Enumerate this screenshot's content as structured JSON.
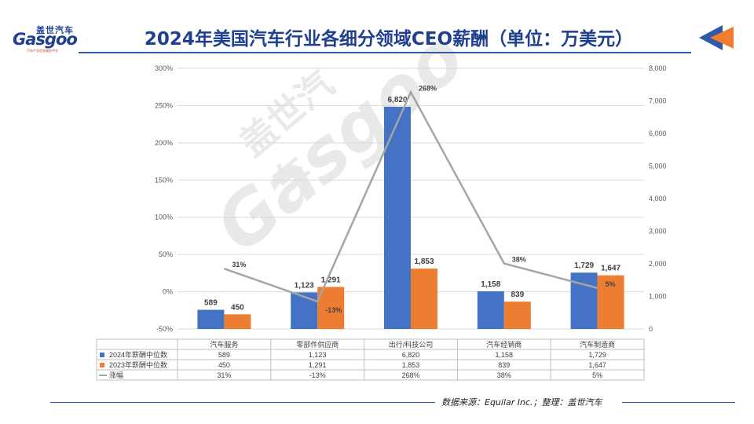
{
  "header": {
    "title": "2024年美国汽车行业各细分领域CEO薪酬（单位：万美元）",
    "logo_cn": "盖世汽车",
    "logo_en": "Gasgoo",
    "logo_sub": "汽车产业信息服务平台"
  },
  "watermark": {
    "cn": "盖世汽车",
    "en": "Gasgoo"
  },
  "footer": {
    "source": "数据来源：Equilar Inc.；整理：盖世汽车"
  },
  "colors": {
    "series_2024": "#4472c4",
    "series_2023": "#ed7d31",
    "growth": "#a5a5a5",
    "brand": "#1f3f8f",
    "accent_orange": "#ed7d31"
  },
  "chart_data": {
    "type": "bar",
    "title": "2024年美国汽车行业各细分领域CEO薪酬（单位：万美元）",
    "categories": [
      "汽车服务",
      "零部件供应商",
      "出行/科技公司",
      "汽车经销商",
      "汽车制造商"
    ],
    "series": [
      {
        "name": "2024年薪酬中位数",
        "type": "bar",
        "axis": "right",
        "values": [
          589,
          1123,
          6820,
          1158,
          1729
        ],
        "labels": [
          "589",
          "1,123",
          "6,820",
          "1,158",
          "1,729"
        ]
      },
      {
        "name": "2023年薪酬中位数",
        "type": "bar",
        "axis": "right",
        "values": [
          450,
          1291,
          1853,
          839,
          1647
        ],
        "labels": [
          "450",
          "1,291",
          "1,853",
          "839",
          "1,647"
        ]
      },
      {
        "name": "涨幅",
        "type": "line",
        "axis": "left",
        "values": [
          31,
          -13,
          268,
          38,
          5
        ],
        "labels": [
          "31%",
          "-13%",
          "268%",
          "38%",
          "5%"
        ]
      }
    ],
    "y_left": {
      "min": -50,
      "max": 300,
      "step": 50,
      "ticks": [
        "-50%",
        "0%",
        "50%",
        "100%",
        "150%",
        "200%",
        "250%",
        "300%"
      ]
    },
    "y_right": {
      "min": 0,
      "max": 8000,
      "step": 1000,
      "ticks": [
        "0",
        "1,000",
        "2,000",
        "3,000",
        "4,000",
        "5,000",
        "6,000",
        "7,000",
        "8,000"
      ]
    },
    "grid": true,
    "legend": "bottom-table"
  }
}
